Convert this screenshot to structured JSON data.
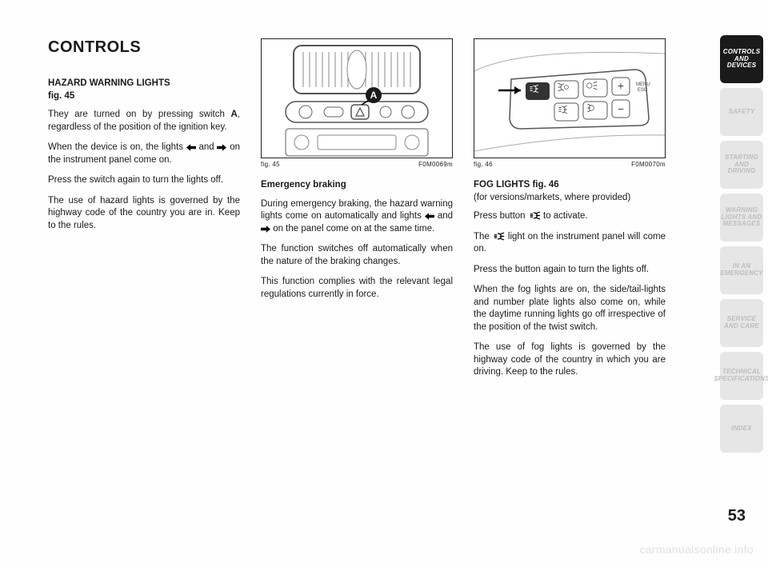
{
  "title": "CONTROLS",
  "section1": {
    "heading_line1": "HAZARD WARNING LIGHTS",
    "heading_line2": "fig. 45",
    "p1a": "They are turned on by pressing switch ",
    "p1b": "A",
    "p1c": ", regardless of the position of the ignition key.",
    "p2a": "When the device is on, the lights ",
    "p2b": " and ",
    "p2c": " on the instrument panel come on.",
    "p3": "Press the switch again to turn the lights off.",
    "p4": "The use of hazard lights is governed by the highway code of the country you are in. Keep to the rules."
  },
  "fig45": {
    "label_left": "fig. 45",
    "label_right": "F0M0069m",
    "marker": "A"
  },
  "section2": {
    "heading": "Emergency braking",
    "p1a": "During emergency braking, the hazard warning lights come on automatically and lights ",
    "p1b": " and ",
    "p1c": " on the panel come on at the same time.",
    "p2": "The function switches off automatically when the nature of the braking changes.",
    "p3": "This function complies with the relevant legal regulations currently in force."
  },
  "fig46": {
    "label_left": "fig. 46",
    "label_right": "F0M0070m"
  },
  "section3": {
    "heading": "FOG LIGHTS fig. 46",
    "sub": "(for versions/markets, where provided)",
    "p1a": "Press button ",
    "p1b": " to activate.",
    "p2a": "The ",
    "p2b": " light on the instrument panel will come on.",
    "p3": "Press the button again to turn the lights off.",
    "p4": "When the fog lights are on, the side/tail-lights and number plate lights also come on, while the daytime running lights go off irrespective of the position of the twist switch.",
    "p5": "The use of fog lights is governed by the highway code of the country in which you are driving. Keep to the rules."
  },
  "tabs": [
    "CONTROLS\nAND DEVICES",
    "SAFETY",
    "STARTING\nAND DRIVING",
    "WARNING\nLIGHTS AND\nMESSAGES",
    "IN AN\nEMERGENCY",
    "SERVICE\nAND CARE",
    "TECHNICAL\nSPECIFICATIONS",
    "INDEX"
  ],
  "tabs_active_index": 0,
  "page_number": "53",
  "watermark": "carmanualsonline.info",
  "style": {
    "active_tab_bg": "#1a1a1a",
    "inactive_tab_bg": "#e6e6e6",
    "inactive_tab_fg": "#bdbdbd",
    "page_bg": "#fefefe"
  }
}
